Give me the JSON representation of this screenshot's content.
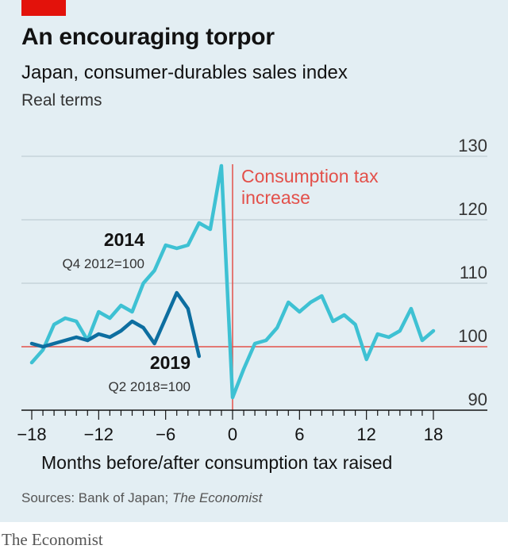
{
  "header": {
    "title": "An encouraging torpor",
    "subtitle": "Japan, consumer-durables sales index",
    "unit": "Real terms"
  },
  "chart_data": {
    "type": "line",
    "title": "An encouraging torpor",
    "subtitle": "Japan, consumer-durables sales index",
    "xlabel": "Months before/after consumption tax raised",
    "ylabel": "",
    "xlim": [
      -18.5,
      18.5
    ],
    "ylim": [
      90,
      130
    ],
    "x_ticks": [
      -18,
      -12,
      -6,
      0,
      6,
      12,
      18
    ],
    "y_ticks": [
      90,
      100,
      110,
      120,
      130
    ],
    "grid": "horizontal",
    "y_axis_side": "right",
    "reference_line": {
      "y": 100
    },
    "annotation": {
      "x": 0,
      "label": "Consumption tax increase",
      "label_line1": "Consumption tax",
      "label_line2": "increase"
    },
    "series": [
      {
        "name": "2014",
        "base": "Q4 2012=100",
        "color": "#3ec1d3",
        "x": [
          -18,
          -17,
          -16,
          -15,
          -14,
          -13,
          -12,
          -11,
          -10,
          -9,
          -8,
          -7,
          -6,
          -5,
          -4,
          -3,
          -2,
          -1,
          0,
          1,
          2,
          3,
          4,
          5,
          6,
          7,
          8,
          9,
          10,
          11,
          12,
          13,
          14,
          15,
          16,
          17,
          18
        ],
        "values": [
          97.5,
          99.5,
          103.5,
          104.5,
          104.0,
          101.0,
          105.5,
          104.5,
          106.5,
          105.5,
          110.0,
          112.0,
          116.0,
          115.5,
          116.0,
          119.5,
          118.5,
          128.5,
          92.0,
          96.5,
          100.5,
          101.0,
          103.0,
          107.0,
          105.5,
          107.0,
          108.0,
          104.0,
          105.0,
          103.5,
          98.0,
          102.0,
          101.5,
          102.5,
          106.0,
          101.0,
          102.5
        ]
      },
      {
        "name": "2019",
        "base": "Q2 2018=100",
        "color": "#0d6ea0",
        "x": [
          -18,
          -17,
          -16,
          -15,
          -14,
          -13,
          -12,
          -11,
          -10,
          -9,
          -8,
          -7,
          -6,
          -5,
          -4,
          -3
        ],
        "values": [
          100.5,
          100.0,
          100.5,
          101.0,
          101.5,
          101.0,
          102.0,
          101.5,
          102.5,
          104.0,
          103.0,
          100.5,
          104.5,
          108.5,
          106.0,
          98.5
        ]
      }
    ]
  },
  "footer": {
    "source_prefix": "Sources: Bank of Japan; ",
    "source_italic": "The Economist",
    "brand": "The Economist"
  }
}
